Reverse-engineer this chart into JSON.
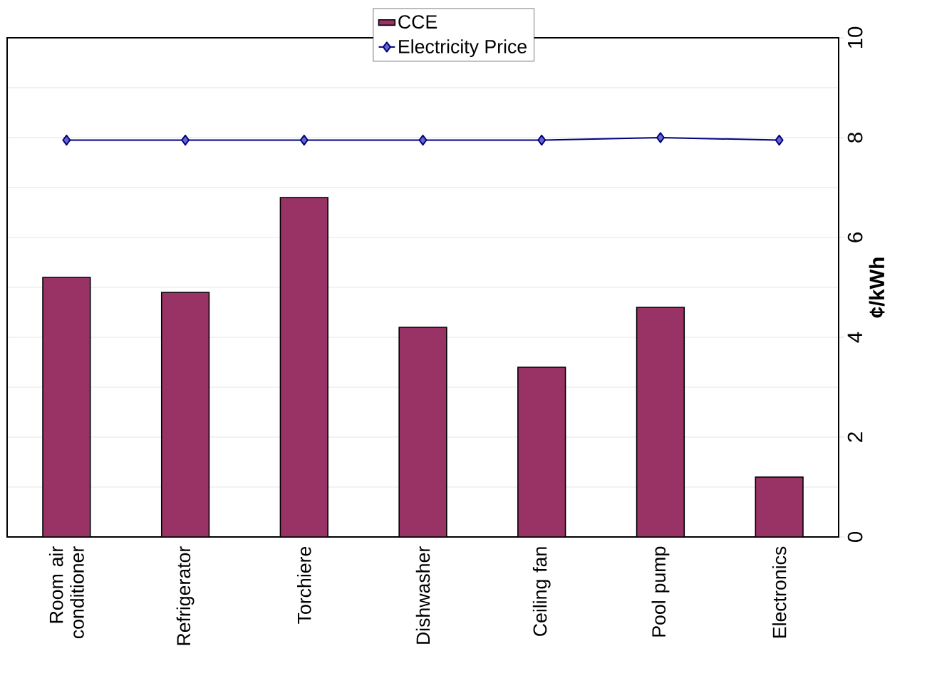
{
  "chart_data": {
    "type": "bar",
    "categories": [
      "Room air conditioner",
      "Refrigerator",
      "Torchiere",
      "Dishwasher",
      "Ceiling fan",
      "Pool pump",
      "Electronics"
    ],
    "series": [
      {
        "name": "CCE",
        "color": "#993366",
        "values": [
          5.2,
          4.9,
          6.8,
          4.2,
          3.4,
          4.6,
          1.2
        ]
      },
      {
        "name": "Electricity Price",
        "type": "line",
        "color": "#000080",
        "marker": "diamond",
        "values": [
          7.95,
          7.95,
          7.95,
          7.95,
          7.95,
          8.0,
          7.95
        ]
      }
    ],
    "ylabel": "¢/kWh",
    "ylim": [
      0,
      10
    ],
    "yticks": [
      0,
      2,
      4,
      6,
      8,
      10
    ],
    "grid": "y",
    "legend": "top"
  }
}
